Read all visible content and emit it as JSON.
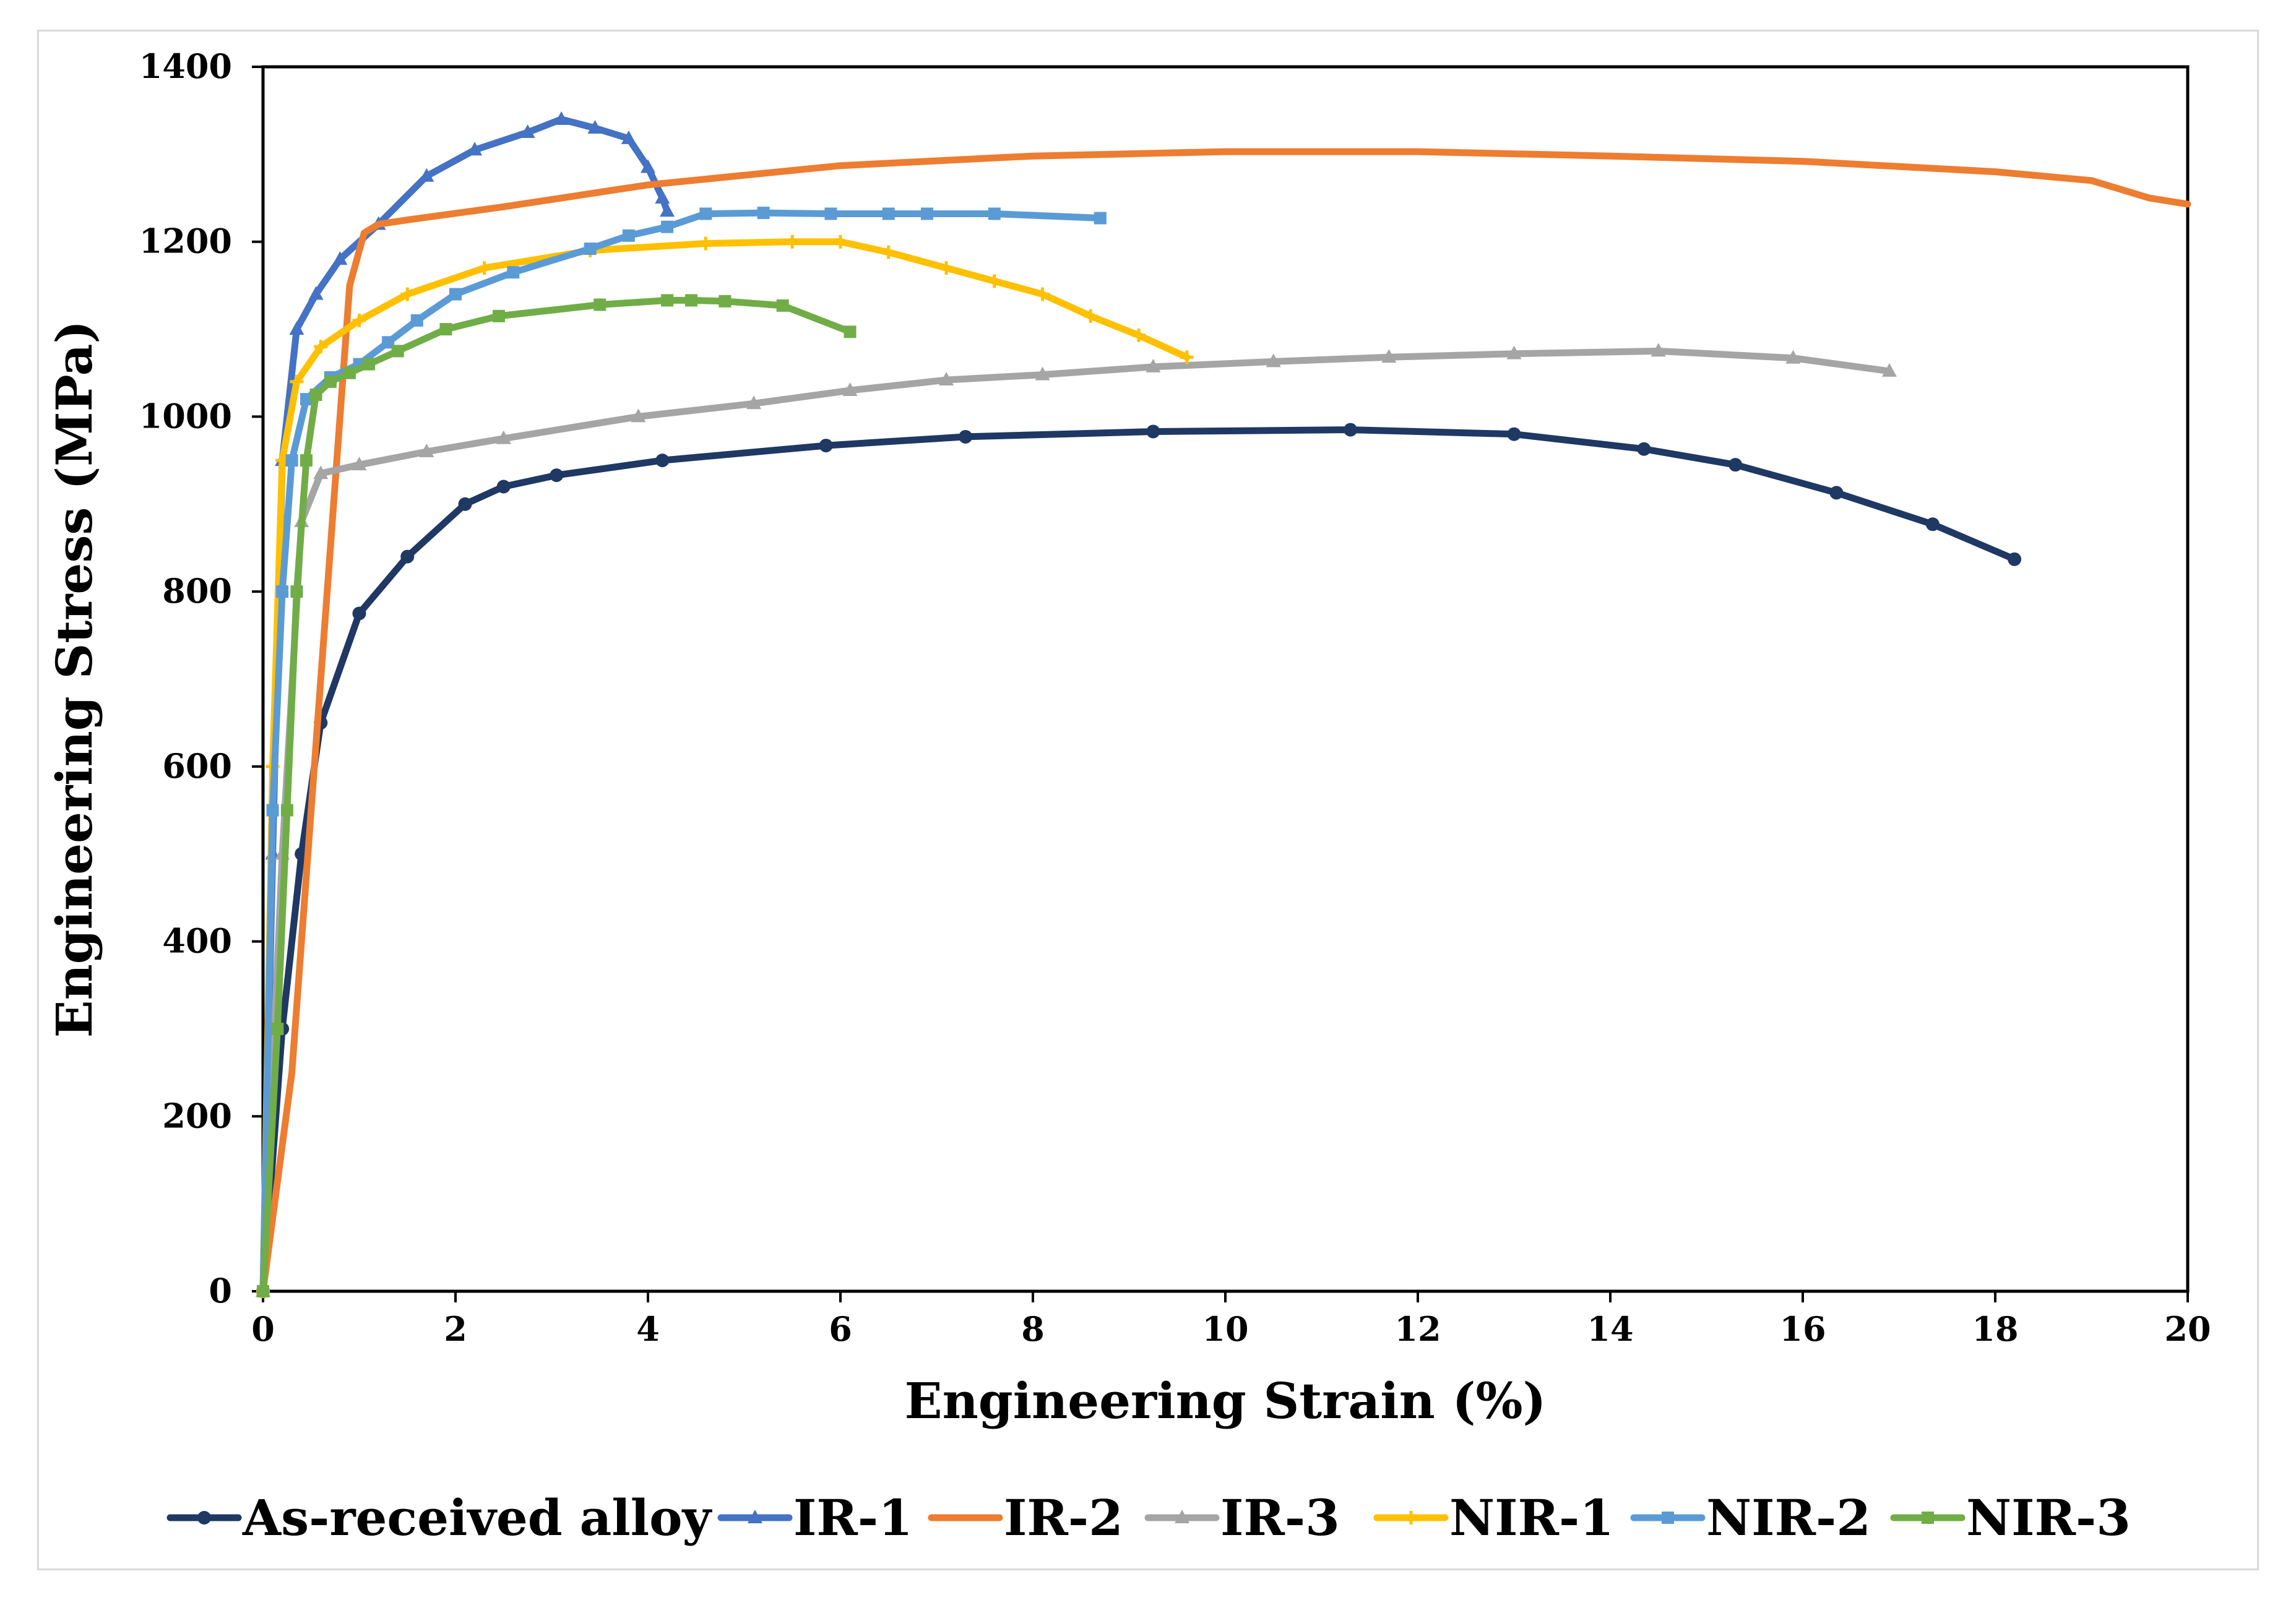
{
  "chart_data": {
    "type": "line",
    "title": "",
    "xlabel": "Engineering Strain (%)",
    "ylabel": "Engineering Stress (MPa)",
    "xlim": [
      0,
      20
    ],
    "ylim": [
      0,
      1400
    ],
    "xticks": [
      0,
      2,
      4,
      6,
      8,
      10,
      12,
      14,
      16,
      18,
      20
    ],
    "yticks": [
      0,
      200,
      400,
      600,
      800,
      1000,
      1200,
      1400
    ],
    "grid": false,
    "legend_position": "bottom",
    "series": [
      {
        "name": "As-received alloy",
        "color": "#1f3864",
        "marker": "circle",
        "x": [
          0,
          0.2,
          0.4,
          0.6,
          1.0,
          1.5,
          2.1,
          2.5,
          3.05,
          4.15,
          5.85,
          7.3,
          9.25,
          11.3,
          13.0,
          14.35,
          15.3,
          16.35,
          17.35,
          18.2
        ],
        "y": [
          0,
          300,
          500,
          650,
          775,
          840,
          900,
          920,
          933,
          950,
          967,
          977,
          983,
          985,
          980,
          963,
          945,
          913,
          877,
          837
        ]
      },
      {
        "name": "IR-1",
        "color": "#4472c4",
        "marker": "triangle",
        "x": [
          0,
          0.1,
          0.2,
          0.35,
          0.55,
          0.8,
          1.2,
          1.7,
          2.2,
          2.75,
          3.1,
          3.45,
          3.8,
          4.0,
          4.15,
          4.2
        ],
        "y": [
          0,
          500,
          950,
          1100,
          1140,
          1180,
          1220,
          1275,
          1305,
          1325,
          1340,
          1330,
          1318,
          1285,
          1250,
          1235
        ]
      },
      {
        "name": "IR-2",
        "color": "#ed7d31",
        "marker": "none",
        "x": [
          0,
          0.3,
          0.6,
          0.9,
          1.05,
          1.2,
          1.5,
          2.5,
          4.0,
          6.0,
          8.0,
          10.0,
          12.0,
          14.0,
          16.0,
          18.0,
          19.0,
          19.3,
          19.6,
          20.0
        ],
        "y": [
          0,
          250,
          700,
          1150,
          1210,
          1220,
          1225,
          1240,
          1265,
          1287,
          1298,
          1303,
          1303,
          1298,
          1292,
          1280,
          1270,
          1260,
          1250,
          1243
        ]
      },
      {
        "name": "IR-3",
        "color": "#a5a5a5",
        "marker": "triangle",
        "x": [
          0,
          0.2,
          0.4,
          0.6,
          1.0,
          1.7,
          2.5,
          3.9,
          5.1,
          6.1,
          7.1,
          8.1,
          9.25,
          10.5,
          11.7,
          13.0,
          14.5,
          15.9,
          16.9
        ],
        "y": [
          0,
          500,
          880,
          935,
          945,
          960,
          975,
          1000,
          1015,
          1030,
          1042,
          1048,
          1057,
          1063,
          1068,
          1072,
          1075,
          1067,
          1052
        ]
      },
      {
        "name": "NIR-1",
        "color": "#ffc000",
        "marker": "plus",
        "x": [
          0,
          0.1,
          0.2,
          0.35,
          0.6,
          1.0,
          1.5,
          2.3,
          3.4,
          4.6,
          5.5,
          6.0,
          6.5,
          7.1,
          7.6,
          8.1,
          8.6,
          9.1,
          9.6
        ],
        "y": [
          0,
          600,
          950,
          1040,
          1080,
          1110,
          1140,
          1170,
          1190,
          1198,
          1200,
          1200,
          1188,
          1170,
          1155,
          1140,
          1115,
          1093,
          1068
        ]
      },
      {
        "name": "NIR-2",
        "color": "#5b9bd5",
        "marker": "square",
        "x": [
          0,
          0.1,
          0.2,
          0.3,
          0.45,
          0.7,
          1.0,
          1.3,
          1.6,
          2.0,
          2.6,
          3.4,
          3.8,
          4.2,
          4.6,
          5.2,
          5.9,
          6.5,
          6.9,
          7.6,
          8.7
        ],
        "y": [
          0,
          550,
          800,
          950,
          1020,
          1045,
          1060,
          1085,
          1110,
          1140,
          1165,
          1192,
          1207,
          1217,
          1232,
          1233,
          1232,
          1232,
          1232,
          1232,
          1227
        ]
      },
      {
        "name": "NIR-3",
        "color": "#70ad47",
        "marker": "square",
        "x": [
          0,
          0.15,
          0.25,
          0.35,
          0.45,
          0.55,
          0.7,
          0.9,
          1.1,
          1.4,
          1.9,
          2.45,
          3.5,
          4.2,
          4.45,
          4.8,
          5.4,
          6.1
        ],
        "y": [
          0,
          300,
          550,
          800,
          950,
          1025,
          1040,
          1050,
          1060,
          1075,
          1100,
          1115,
          1128,
          1133,
          1133,
          1132,
          1127,
          1097
        ]
      }
    ]
  }
}
